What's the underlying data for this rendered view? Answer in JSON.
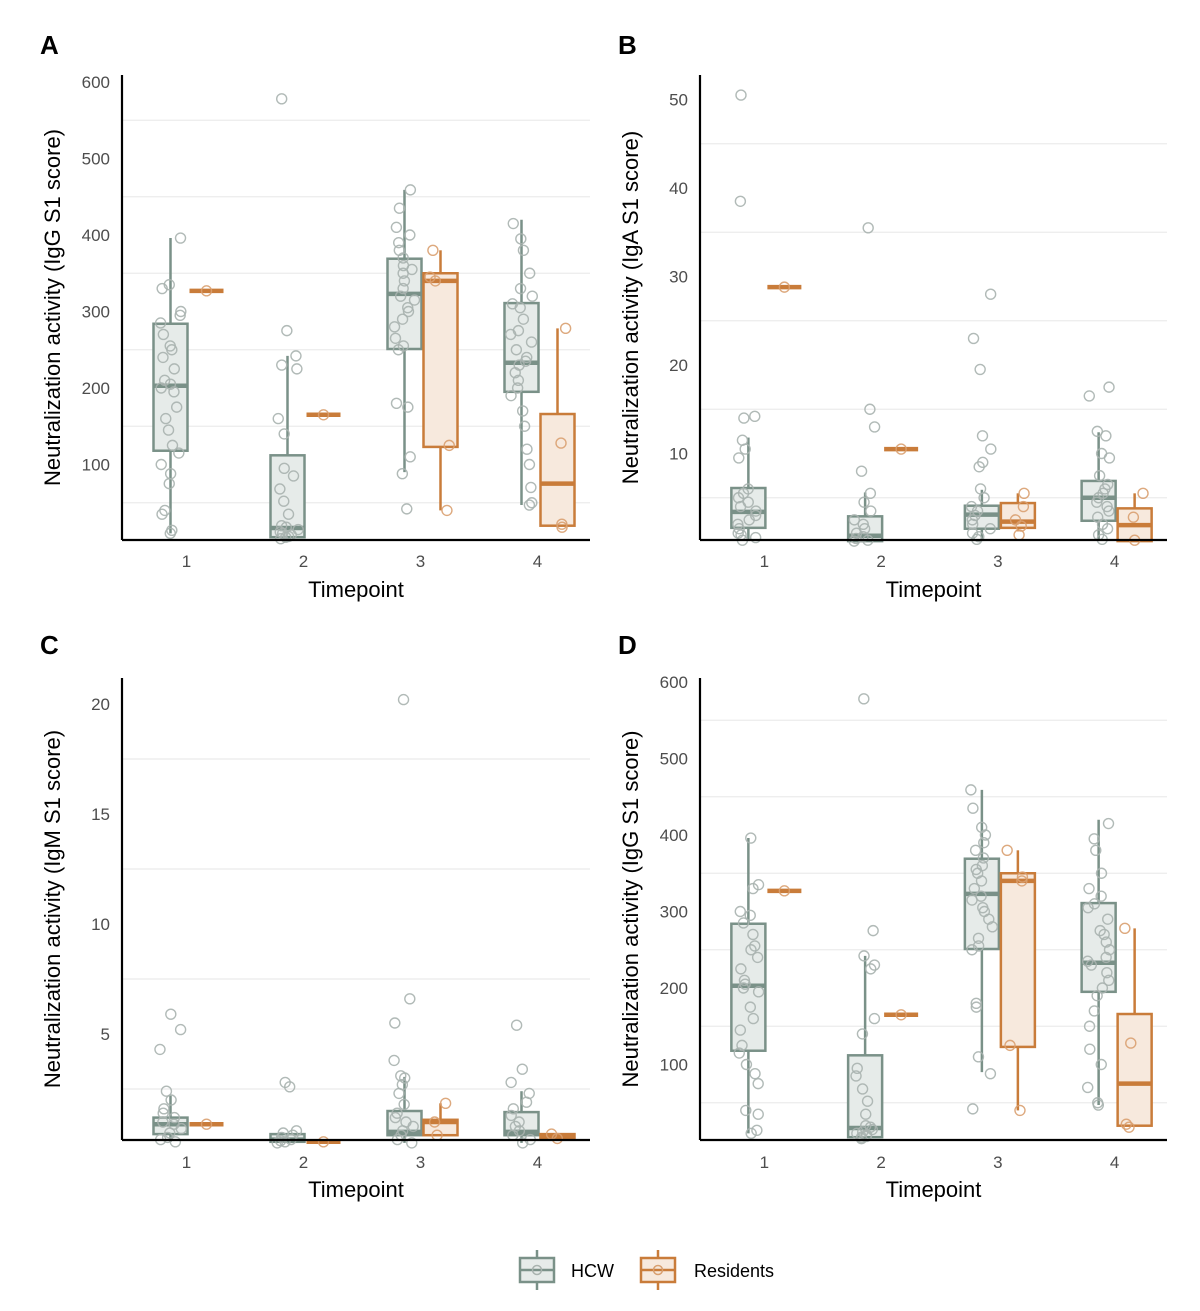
{
  "colors": {
    "HCW": "#7a9188",
    "HCW_fill": "#e6ebe9",
    "Residents": "#c97c3a",
    "Residents_fill": "#f7e9dd",
    "point_HCW": "#a9b3af",
    "point_Residents": "#d9a070",
    "grid": "#ebebeb"
  },
  "legend": {
    "items": [
      {
        "key": "HCW",
        "label": "HCW"
      },
      {
        "key": "Residents",
        "label": "Residents"
      }
    ]
  },
  "chart_data": [
    {
      "panel": "A",
      "type": "box",
      "title": "",
      "xlabel": "Timepoint",
      "ylabel": "Neutralization activity (IgG S1 score)",
      "categories": [
        "1",
        "2",
        "3",
        "4"
      ],
      "yticks": [
        100,
        200,
        300,
        400,
        500,
        600
      ],
      "ylim": [
        0,
        600
      ],
      "grid": "horizontal",
      "series": [
        {
          "name": "HCW",
          "boxes": [
            {
              "lo": 10,
              "q1": 118,
              "median": 203,
              "q3": 284,
              "hi": 396,
              "points": [
                10,
                14,
                35,
                40,
                75,
                88,
                100,
                115,
                125,
                145,
                160,
                175,
                195,
                200,
                205,
                210,
                225,
                240,
                250,
                255,
                270,
                285,
                295,
                300,
                330,
                335,
                396
              ]
            },
            {
              "lo": 3,
              "q1": 5,
              "median": 17,
              "q3": 112,
              "hi": 242,
              "points": [
                3,
                5,
                6,
                8,
                10,
                12,
                15,
                18,
                20,
                35,
                52,
                68,
                85,
                95,
                140,
                160,
                225,
                230,
                242,
                275,
                578
              ]
            },
            {
              "lo": 90,
              "q1": 251,
              "median": 323,
              "q3": 369,
              "hi": 459,
              "points": [
                42,
                88,
                110,
                175,
                180,
                250,
                255,
                265,
                280,
                290,
                300,
                305,
                315,
                320,
                330,
                340,
                350,
                355,
                360,
                370,
                380,
                390,
                400,
                410,
                435,
                459
              ]
            },
            {
              "lo": 47,
              "q1": 195,
              "median": 233,
              "q3": 311,
              "hi": 420,
              "points": [
                47,
                50,
                70,
                100,
                120,
                150,
                170,
                190,
                200,
                210,
                220,
                230,
                235,
                240,
                250,
                260,
                270,
                275,
                290,
                305,
                310,
                320,
                330,
                350,
                380,
                395,
                415
              ]
            }
          ]
        },
        {
          "name": "Residents",
          "boxes": [
            {
              "lo": 327,
              "q1": 327,
              "median": 327,
              "q3": 327,
              "hi": 327,
              "points": [
                327
              ]
            },
            {
              "lo": 165,
              "q1": 165,
              "median": 165,
              "q3": 165,
              "hi": 165,
              "points": [
                165
              ]
            },
            {
              "lo": 40,
              "q1": 123,
              "median": 340,
              "q3": 350,
              "hi": 380,
              "points": [
                40,
                125,
                340,
                345,
                380
              ]
            },
            {
              "lo": 20,
              "q1": 20,
              "median": 75,
              "q3": 166,
              "hi": 278,
              "points": [
                18,
                22,
                128,
                278
              ]
            }
          ]
        }
      ]
    },
    {
      "panel": "B",
      "type": "box",
      "title": "",
      "xlabel": "Timepoint",
      "ylabel": "Neutralization activity (IgA S1 score)",
      "categories": [
        "1",
        "2",
        "3",
        "4"
      ],
      "yticks": [
        10,
        20,
        30,
        40,
        50
      ],
      "ylim": [
        0,
        51
      ],
      "grid": "horizontal",
      "series": [
        {
          "name": "HCW",
          "boxes": [
            {
              "lo": 0.2,
              "q1": 1.6,
              "median": 3.4,
              "q3": 6.1,
              "hi": 11.8,
              "points": [
                0.2,
                0.5,
                0.8,
                1.0,
                1.5,
                2.0,
                2.5,
                3.0,
                3.5,
                4.0,
                4.5,
                5.0,
                5.5,
                6.0,
                9.5,
                10.5,
                11.5,
                14.0,
                14.2,
                38.5,
                50.5
              ]
            },
            {
              "lo": 0.1,
              "q1": 0.1,
              "median": 0.7,
              "q3": 2.9,
              "hi": 5.6,
              "points": [
                0.1,
                0.2,
                0.4,
                0.6,
                1.0,
                1.5,
                2.0,
                2.5,
                3.5,
                4.5,
                5.5,
                8.0,
                13.0,
                15.0,
                35.5
              ]
            },
            {
              "lo": 0.3,
              "q1": 1.5,
              "median": 3.1,
              "q3": 4.1,
              "hi": 5.9,
              "points": [
                0.3,
                0.6,
                1.0,
                1.5,
                2.0,
                2.5,
                3.0,
                3.5,
                4.0,
                5.0,
                6.0,
                8.5,
                9.0,
                10.5,
                12.0,
                19.5,
                23.0,
                28.0
              ]
            },
            {
              "lo": 0.3,
              "q1": 2.4,
              "median": 5.0,
              "q3": 6.9,
              "hi": 12.4,
              "points": [
                0.3,
                0.8,
                1.5,
                2.0,
                2.8,
                3.5,
                4.0,
                4.5,
                5.0,
                5.5,
                6.0,
                6.5,
                7.5,
                9.5,
                10.0,
                12.0,
                12.5,
                16.5,
                17.5
              ]
            }
          ]
        },
        {
          "name": "Residents",
          "boxes": [
            {
              "lo": 28.8,
              "q1": 28.8,
              "median": 28.8,
              "q3": 28.8,
              "hi": 28.8,
              "points": [
                28.8
              ]
            },
            {
              "lo": 10.5,
              "q1": 10.5,
              "median": 10.5,
              "q3": 10.5,
              "hi": 10.5,
              "points": [
                10.5
              ]
            },
            {
              "lo": 1.2,
              "q1": 1.6,
              "median": 2.3,
              "q3": 4.4,
              "hi": 5.5,
              "points": [
                0.8,
                1.8,
                2.5,
                4.0,
                5.5
              ]
            },
            {
              "lo": 0.1,
              "q1": 0.1,
              "median": 1.9,
              "q3": 3.8,
              "hi": 5.5,
              "points": [
                0.2,
                2.8,
                5.5
              ]
            }
          ]
        }
      ]
    },
    {
      "panel": "C",
      "type": "box",
      "title": "",
      "xlabel": "Timepoint",
      "ylabel": "Neutralization activity (IgM S1 score)",
      "categories": [
        "1",
        "2",
        "3",
        "4"
      ],
      "yticks": [
        5,
        10,
        15,
        20
      ],
      "ylim": [
        0,
        21
      ],
      "grid": "horizontal",
      "series": [
        {
          "name": "HCW",
          "boxes": [
            {
              "lo": 0.1,
              "q1": 0.45,
              "median": 0.9,
              "q3": 1.2,
              "hi": 2.2,
              "points": [
                0.1,
                0.2,
                0.3,
                0.5,
                0.7,
                0.9,
                1.0,
                1.2,
                1.4,
                1.6,
                2.0,
                2.4,
                4.3,
                5.2,
                5.9
              ]
            },
            {
              "lo": 0.05,
              "q1": 0.1,
              "median": 0.2,
              "q3": 0.45,
              "hi": 0.45,
              "points": [
                0.05,
                0.1,
                0.15,
                0.2,
                0.3,
                0.4,
                0.5,
                0.6,
                2.6,
                2.8
              ]
            },
            {
              "lo": 0.05,
              "q1": 0.4,
              "median": 0.55,
              "q3": 1.5,
              "hi": 3.05,
              "points": [
                0.05,
                0.2,
                0.4,
                0.6,
                0.8,
                1.0,
                1.2,
                1.4,
                1.8,
                2.3,
                2.7,
                3.0,
                3.1,
                3.8,
                5.5,
                6.6,
                20.2
              ]
            },
            {
              "lo": 0.05,
              "q1": 0.4,
              "median": 0.55,
              "q3": 1.45,
              "hi": 2.4,
              "points": [
                0.05,
                0.2,
                0.4,
                0.6,
                0.8,
                1.0,
                1.3,
                1.6,
                1.9,
                2.3,
                2.8,
                3.4,
                5.4
              ]
            }
          ]
        },
        {
          "name": "Residents",
          "boxes": [
            {
              "lo": 0.9,
              "q1": 0.9,
              "median": 0.9,
              "q3": 0.9,
              "hi": 0.9,
              "points": [
                0.9
              ]
            },
            {
              "lo": 0.1,
              "q1": 0.1,
              "median": 0.1,
              "q3": 0.1,
              "hi": 0.1,
              "points": [
                0.1
              ]
            },
            {
              "lo": 0.4,
              "q1": 0.4,
              "median": 1.0,
              "q3": 1.1,
              "hi": 1.85,
              "points": [
                0.4,
                1.0,
                1.85
              ]
            },
            {
              "lo": 0.25,
              "q1": 0.25,
              "median": 0.35,
              "q3": 0.45,
              "hi": 0.45,
              "points": [
                0.25,
                0.45
              ]
            }
          ]
        }
      ]
    },
    {
      "panel": "D",
      "type": "box",
      "title": "",
      "xlabel": "Timepoint",
      "ylabel": "Neutralization activity (IgG S1 score)",
      "categories": [
        "1",
        "2",
        "3",
        "4"
      ],
      "yticks": [
        100,
        200,
        300,
        400,
        500,
        600
      ],
      "ylim": [
        0,
        600
      ],
      "grid": "horizontal",
      "series": [
        {
          "name": "HCW",
          "boxes": [
            {
              "lo": 10,
              "q1": 118,
              "median": 203,
              "q3": 284,
              "hi": 396,
              "points": [
                10,
                14,
                35,
                40,
                75,
                88,
                100,
                115,
                125,
                145,
                160,
                175,
                195,
                200,
                205,
                210,
                225,
                240,
                250,
                255,
                270,
                285,
                295,
                300,
                330,
                335,
                396
              ]
            },
            {
              "lo": 3,
              "q1": 5,
              "median": 17,
              "q3": 112,
              "hi": 242,
              "points": [
                3,
                5,
                6,
                8,
                10,
                12,
                15,
                18,
                20,
                35,
                52,
                68,
                85,
                95,
                140,
                160,
                225,
                230,
                242,
                275,
                578
              ]
            },
            {
              "lo": 90,
              "q1": 251,
              "median": 323,
              "q3": 369,
              "hi": 459,
              "points": [
                42,
                88,
                110,
                175,
                180,
                250,
                255,
                265,
                280,
                290,
                300,
                305,
                315,
                320,
                330,
                340,
                350,
                355,
                360,
                370,
                380,
                390,
                400,
                410,
                435,
                459
              ]
            },
            {
              "lo": 47,
              "q1": 195,
              "median": 233,
              "q3": 311,
              "hi": 420,
              "points": [
                47,
                50,
                70,
                100,
                120,
                150,
                170,
                190,
                200,
                210,
                220,
                230,
                235,
                240,
                250,
                260,
                270,
                275,
                290,
                305,
                310,
                320,
                330,
                350,
                380,
                395,
                415
              ]
            }
          ]
        },
        {
          "name": "Residents",
          "boxes": [
            {
              "lo": 327,
              "q1": 327,
              "median": 327,
              "q3": 327,
              "hi": 327,
              "points": [
                327
              ]
            },
            {
              "lo": 165,
              "q1": 165,
              "median": 165,
              "q3": 165,
              "hi": 165,
              "points": [
                165
              ]
            },
            {
              "lo": 40,
              "q1": 123,
              "median": 340,
              "q3": 350,
              "hi": 380,
              "points": [
                40,
                125,
                340,
                345,
                380
              ]
            },
            {
              "lo": 20,
              "q1": 20,
              "median": 75,
              "q3": 166,
              "hi": 278,
              "points": [
                18,
                22,
                128,
                278
              ]
            }
          ]
        }
      ]
    }
  ]
}
